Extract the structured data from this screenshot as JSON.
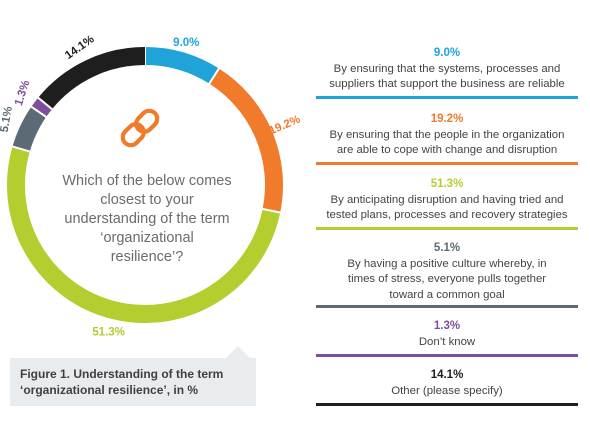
{
  "colors": {
    "blue": "#1fa3d8",
    "orange": "#f07b2a",
    "green": "#b4cd2f",
    "gray": "#5c6a75",
    "purple": "#7d4f9c",
    "black": "#1e1e1e"
  },
  "center_question": "Which of the below comes closest to your understanding of the term ‘organizational resilience’?",
  "center_icon": "chain-link-icon",
  "caption": "Figure 1. Understanding of the term ‘organizational resilience’, in %",
  "chart_data": {
    "type": "pie",
    "donut": true,
    "unit": "%",
    "slices": [
      {
        "label": "By ensuring that the systems, processes and suppliers that support the business are reliable",
        "value": 9.0,
        "display": "9.0%",
        "color": "#1fa3d8"
      },
      {
        "label": "By ensuring that the people in the organization are able to cope with change and disruption",
        "value": 19.2,
        "display": "19.2%",
        "color": "#f07b2a"
      },
      {
        "label": "By anticipating disruption and having tried and tested plans, processes and recovery strategies",
        "value": 51.3,
        "display": "51.3%",
        "color": "#b4cd2f"
      },
      {
        "label": "By having a positive culture whereby, in times of stress, everyone pulls together toward a common goal",
        "value": 5.1,
        "display": "5.1%",
        "color": "#5c6a75"
      },
      {
        "label": "Don’t know",
        "value": 1.3,
        "display": "1.3%",
        "color": "#7d4f9c"
      },
      {
        "label": "Other (please specify)",
        "value": 14.1,
        "display": "14.1%",
        "color": "#1e1e1e"
      }
    ]
  }
}
